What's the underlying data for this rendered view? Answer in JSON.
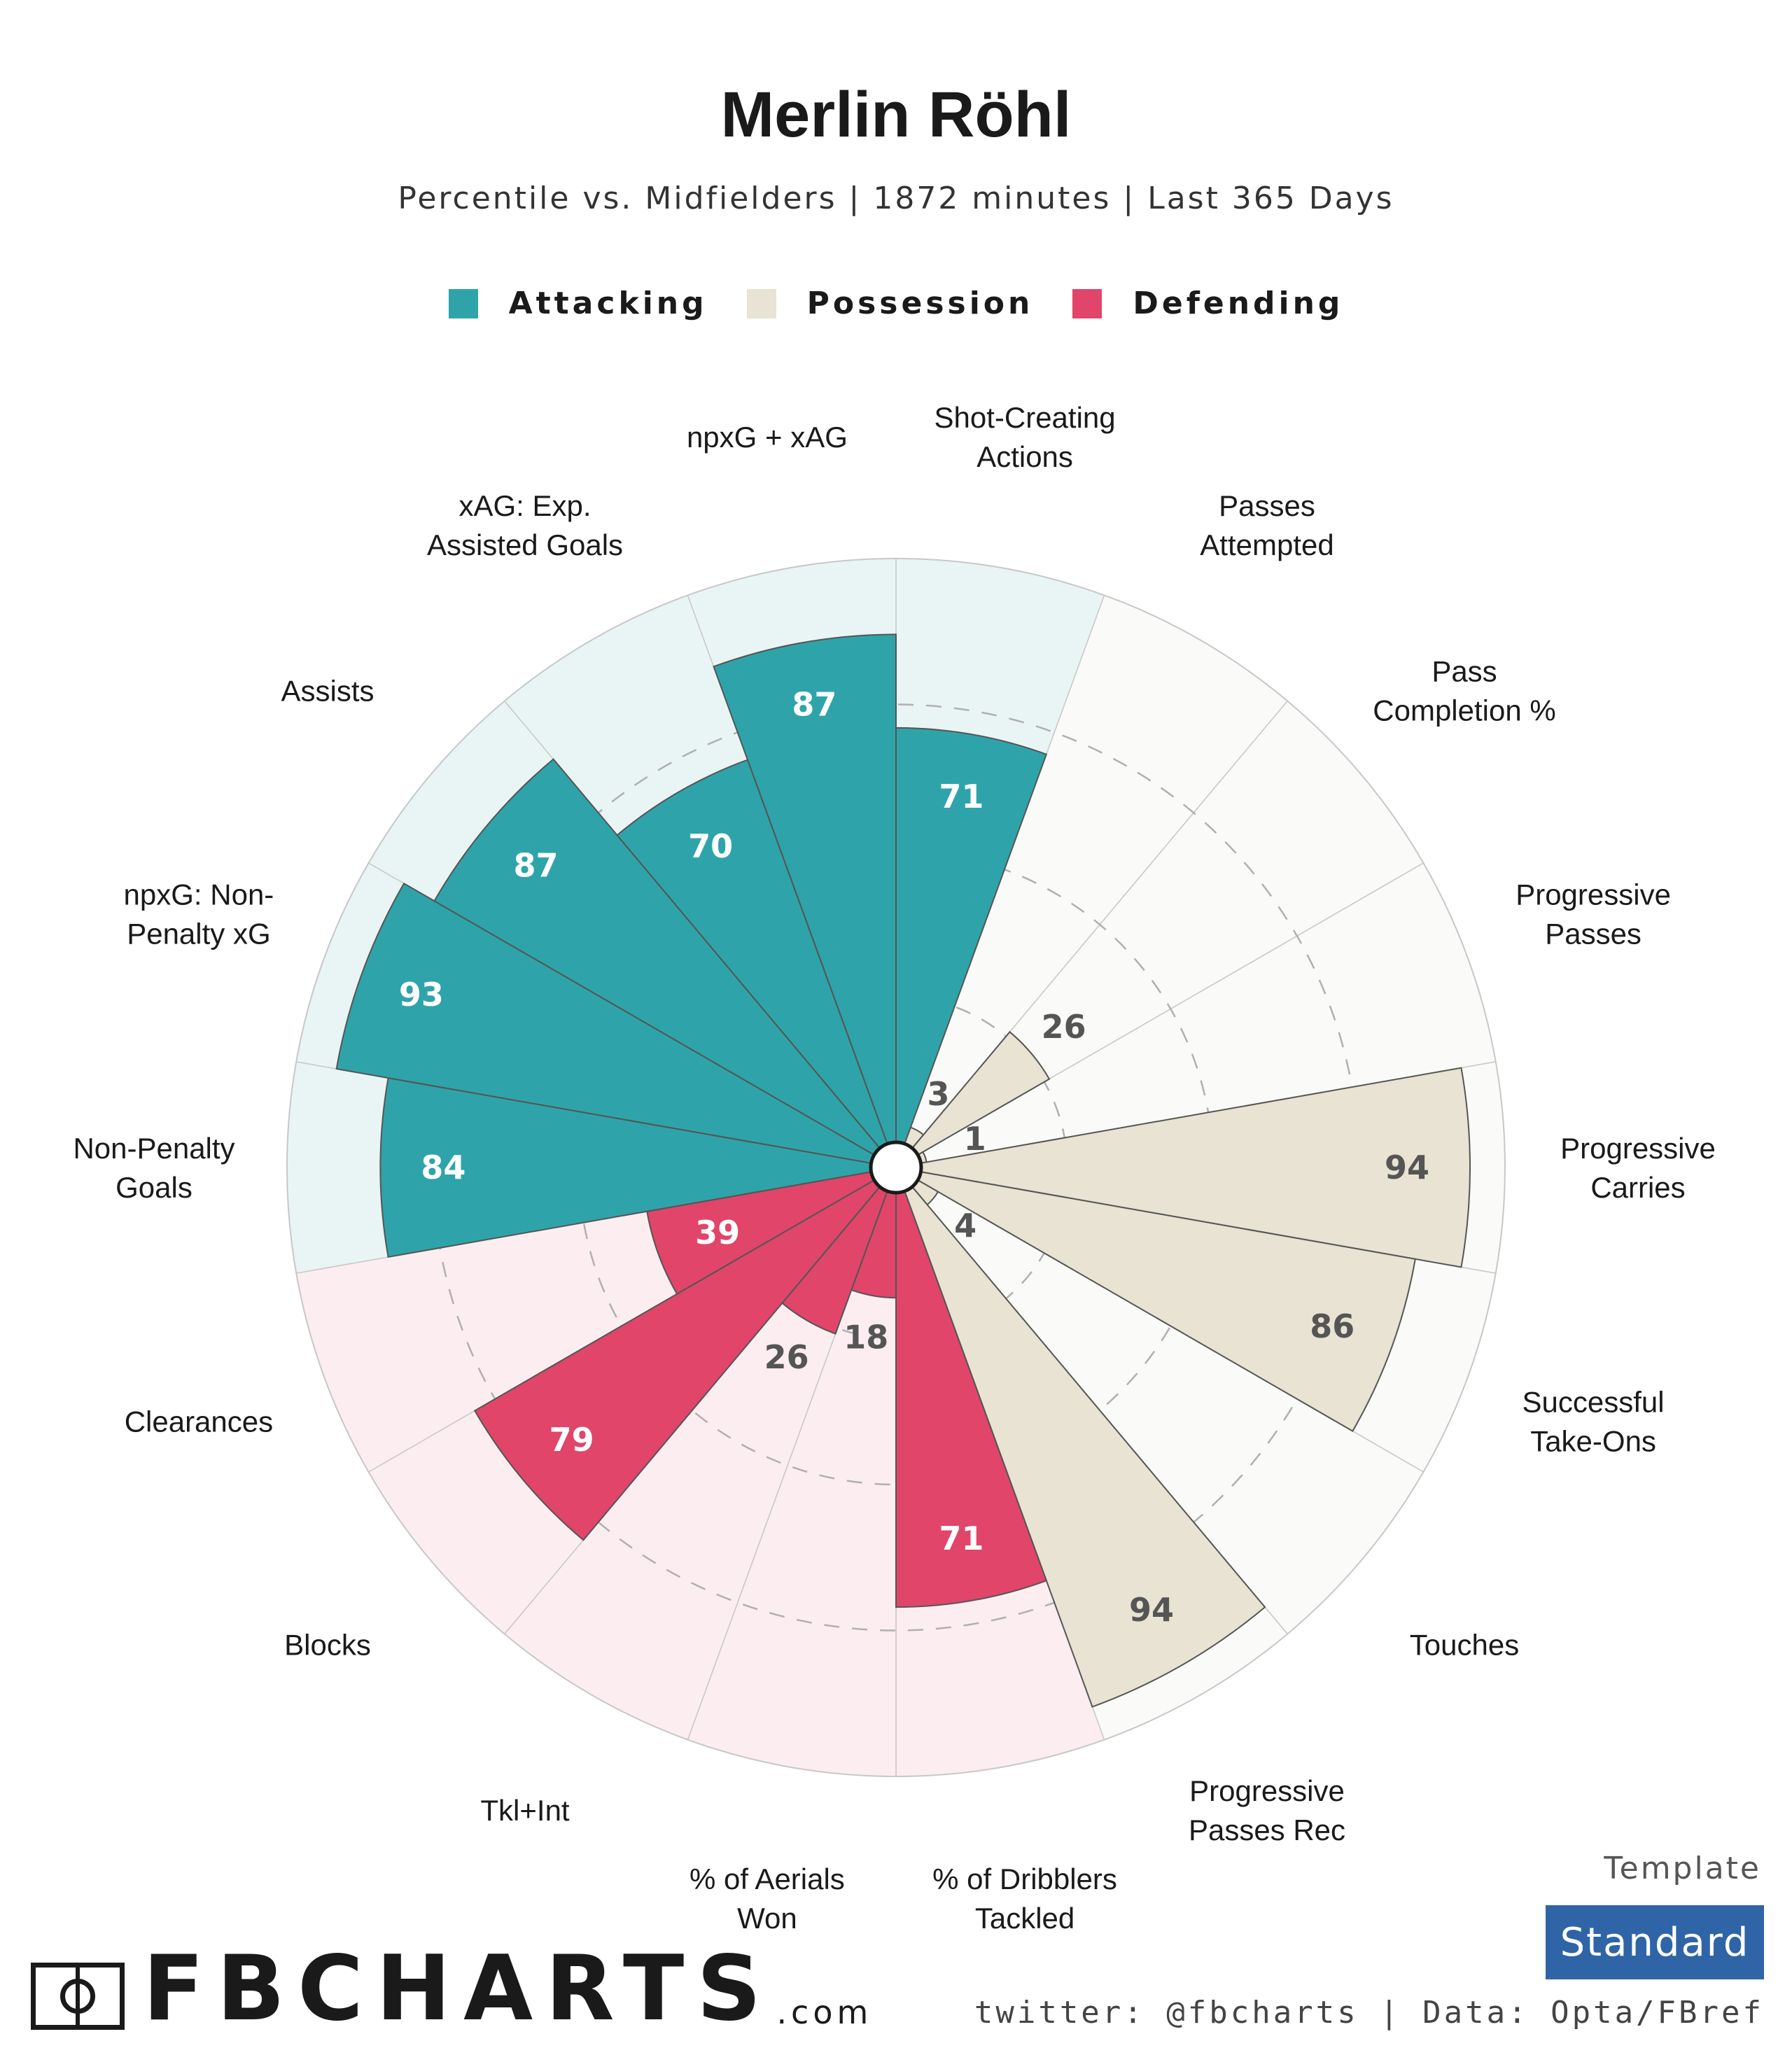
{
  "title": "Merlin Röhl",
  "subtitle": "Percentile vs. Midfielders | 1872 minutes | Last 365 Days",
  "legend": [
    {
      "label": "Attacking",
      "color": "#2ea4aa"
    },
    {
      "label": "Possession",
      "color": "#e8e3d2"
    },
    {
      "label": "Defending",
      "color": "#e1456a"
    }
  ],
  "chart_data": {
    "type": "polar-bar",
    "max": 100,
    "rings": [
      25,
      50,
      75
    ],
    "categories": [
      {
        "label": "Shot-Creating Actions",
        "lines": [
          "Shot-Creating",
          "Actions"
        ],
        "value": 71,
        "group": "Attacking"
      },
      {
        "label": "Passes Attempted",
        "lines": [
          "Passes",
          "Attempted"
        ],
        "value": 3,
        "group": "Possession"
      },
      {
        "label": "Pass Completion %",
        "lines": [
          "Pass",
          "Completion %"
        ],
        "value": 26,
        "group": "Possession"
      },
      {
        "label": "Progressive Passes",
        "lines": [
          "Progressive",
          "Passes"
        ],
        "value": 1,
        "group": "Possession"
      },
      {
        "label": "Progressive Carries",
        "lines": [
          "Progressive",
          "Carries"
        ],
        "value": 94,
        "group": "Possession"
      },
      {
        "label": "Successful Take-Ons",
        "lines": [
          "Successful",
          "Take-Ons"
        ],
        "value": 86,
        "group": "Possession"
      },
      {
        "label": "Touches",
        "lines": [
          "Touches"
        ],
        "value": 4,
        "group": "Possession"
      },
      {
        "label": "Progressive Passes Rec",
        "lines": [
          "Progressive",
          "Passes Rec"
        ],
        "value": 94,
        "group": "Possession"
      },
      {
        "label": "% of Dribblers Tackled",
        "lines": [
          "% of Dribblers",
          "Tackled"
        ],
        "value": 71,
        "group": "Defending"
      },
      {
        "label": "% of Aerials Won",
        "lines": [
          "% of Aerials",
          "Won"
        ],
        "value": 18,
        "group": "Defending"
      },
      {
        "label": "Tkl+Int",
        "lines": [
          "Tkl+Int"
        ],
        "value": 26,
        "group": "Defending"
      },
      {
        "label": "Blocks",
        "lines": [
          "Blocks"
        ],
        "value": 79,
        "group": "Defending"
      },
      {
        "label": "Clearances",
        "lines": [
          "Clearances"
        ],
        "value": 39,
        "group": "Defending"
      },
      {
        "label": "Non-Penalty Goals",
        "lines": [
          "Non-Penalty",
          "Goals"
        ],
        "value": 84,
        "group": "Attacking"
      },
      {
        "label": "npxG: Non-Penalty xG",
        "lines": [
          "npxG: Non-",
          "Penalty xG"
        ],
        "value": 93,
        "group": "Attacking"
      },
      {
        "label": "Assists",
        "lines": [
          "Assists"
        ],
        "value": 87,
        "group": "Attacking"
      },
      {
        "label": "xAG: Exp. Assisted Goals",
        "lines": [
          "xAG: Exp.",
          "Assisted Goals"
        ],
        "value": 70,
        "group": "Attacking"
      },
      {
        "label": "npxG + xAG",
        "lines": [
          "npxG + xAG"
        ],
        "value": 87,
        "group": "Attacking"
      }
    ],
    "group_colors": {
      "Attacking": {
        "bar": "#2ea4aa",
        "background": "#e9f5f5",
        "label": "#ffffff"
      },
      "Possession": {
        "bar": "#e8e3d2",
        "background": "#fafaf8",
        "label": "#555555"
      },
      "Defending": {
        "bar": "#e1456a",
        "background": "#fcedf1",
        "label": "#ffffff"
      }
    }
  },
  "template": {
    "label": "Template",
    "value": "Standard"
  },
  "credit": "twitter: @fbcharts | Data: Opta/FBref",
  "brand": {
    "name": "FBCHARTS",
    "suffix": ".com"
  }
}
